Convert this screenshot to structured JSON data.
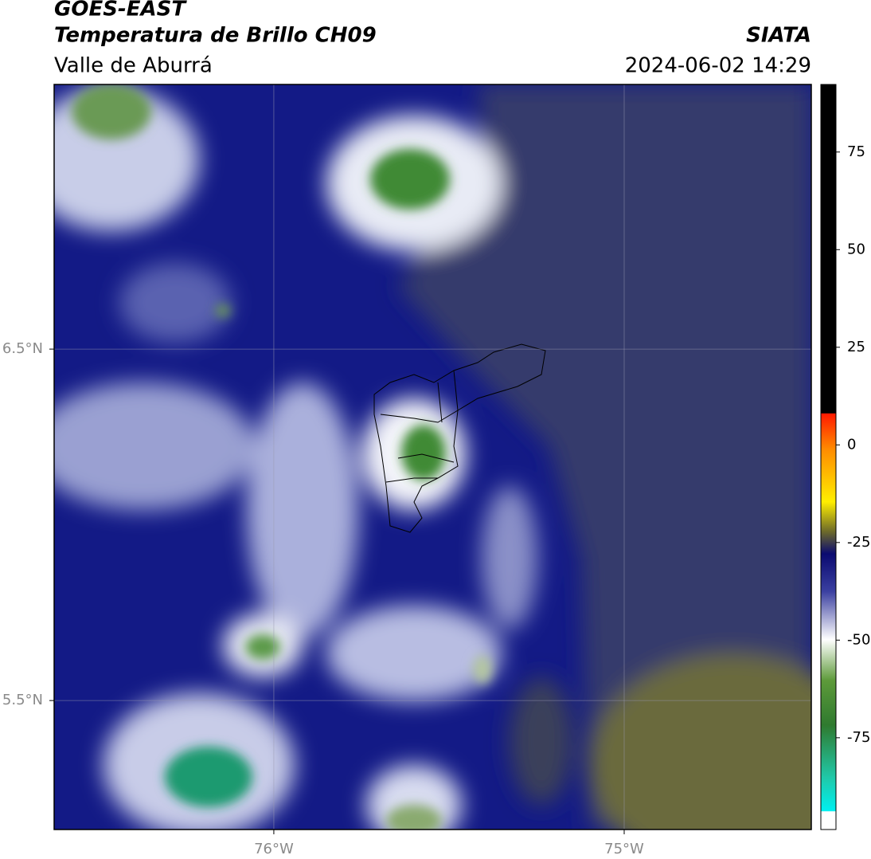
{
  "header": {
    "title": "GOES-EAST",
    "subtitle": "Temperatura de Brillo CH09",
    "region": "Valle de Aburrá",
    "source": "SIATA",
    "timestamp": "2024-06-02 14:29"
  },
  "map": {
    "xlim": [
      -76.627,
      -74.466
    ],
    "ylim": [
      5.133,
      7.253
    ],
    "xticks": [
      {
        "value": -76,
        "label": "76°W"
      },
      {
        "value": -75,
        "label": "75°W"
      }
    ],
    "yticks": [
      {
        "value": 6.5,
        "label": "6.5°N"
      },
      {
        "value": 5.5,
        "label": "5.5°N"
      }
    ],
    "grid": true
  },
  "colorbar": {
    "lim": [
      -98.5,
      92.3
    ],
    "ticks": [
      75,
      50,
      25,
      0,
      -25,
      -50,
      -75
    ]
  }
}
